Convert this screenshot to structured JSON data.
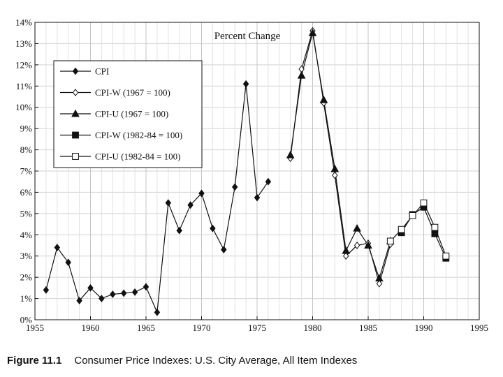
{
  "chart_data": {
    "type": "line",
    "title": "Percent Change",
    "xlabel": "",
    "ylabel": "",
    "xlim": [
      1955,
      1995
    ],
    "ylim": [
      0,
      14
    ],
    "grid": true,
    "legend_position": "top-left",
    "x_ticks": [
      "1955",
      "1960",
      "1965",
      "1970",
      "1975",
      "1980",
      "1985",
      "1990",
      "1995"
    ],
    "y_ticks": [
      "0%",
      "1%",
      "2%",
      "3%",
      "4%",
      "5%",
      "6%",
      "7%",
      "8%",
      "9%",
      "10%",
      "11%",
      "12%",
      "13%",
      "14%"
    ],
    "series": [
      {
        "name": "CPI",
        "marker": "filled-diamond",
        "segments": [
          [
            [
              1956,
              1.4
            ],
            [
              1957,
              3.4
            ],
            [
              1958,
              2.7
            ],
            [
              1959,
              0.9
            ],
            [
              1960,
              1.5
            ],
            [
              1961,
              1.0
            ],
            [
              1962,
              1.2
            ],
            [
              1963,
              1.25
            ],
            [
              1964,
              1.3
            ],
            [
              1965,
              1.55
            ],
            [
              1966,
              0.35
            ],
            [
              1967,
              5.5
            ],
            [
              1968,
              4.2
            ],
            [
              1969,
              5.4
            ],
            [
              1970,
              5.95
            ],
            [
              1971,
              4.3
            ],
            [
              1972,
              3.3
            ],
            [
              1973,
              6.25
            ],
            [
              1974,
              11.1
            ],
            [
              1975,
              5.75
            ],
            [
              1976,
              6.5
            ]
          ]
        ]
      },
      {
        "name": "CPI-W (1967 = 100)",
        "marker": "open-diamond",
        "segments": [
          [
            [
              1978,
              7.6
            ],
            [
              1979,
              11.8
            ],
            [
              1980,
              13.6
            ],
            [
              1981,
              10.2
            ],
            [
              1982,
              6.8
            ],
            [
              1983,
              3.0
            ],
            [
              1984,
              3.5
            ],
            [
              1985,
              3.6
            ],
            [
              1986,
              1.7
            ],
            [
              1987,
              3.55
            ]
          ]
        ]
      },
      {
        "name": "CPI-U (1967 = 100)",
        "marker": "filled-triangle",
        "segments": [
          [
            [
              1978,
              7.75
            ],
            [
              1979,
              11.5
            ],
            [
              1980,
              13.5
            ],
            [
              1981,
              10.35
            ],
            [
              1982,
              7.1
            ],
            [
              1983,
              3.25
            ],
            [
              1984,
              4.3
            ],
            [
              1985,
              3.5
            ],
            [
              1986,
              1.95
            ],
            [
              1987,
              3.7
            ]
          ]
        ]
      },
      {
        "name": "CPI-W (1982-84 = 100)",
        "marker": "filled-square",
        "segments": [
          [
            [
              1988,
              4.1
            ],
            [
              1989,
              4.95
            ],
            [
              1990,
              5.3
            ],
            [
              1991,
              4.05
            ],
            [
              1992,
              2.9
            ]
          ]
        ]
      },
      {
        "name": "CPI-U (1982-84 = 100)",
        "marker": "open-square",
        "segments": [
          [
            [
              1987,
              3.7
            ],
            [
              1988,
              4.25
            ],
            [
              1989,
              4.9
            ],
            [
              1990,
              5.5
            ],
            [
              1991,
              4.35
            ],
            [
              1992,
              3.0
            ]
          ]
        ]
      }
    ]
  },
  "caption": {
    "figure_number": "Figure 11.1",
    "text": "Consumer Price Indexes: U.S. City Average, All Item Indexes"
  }
}
